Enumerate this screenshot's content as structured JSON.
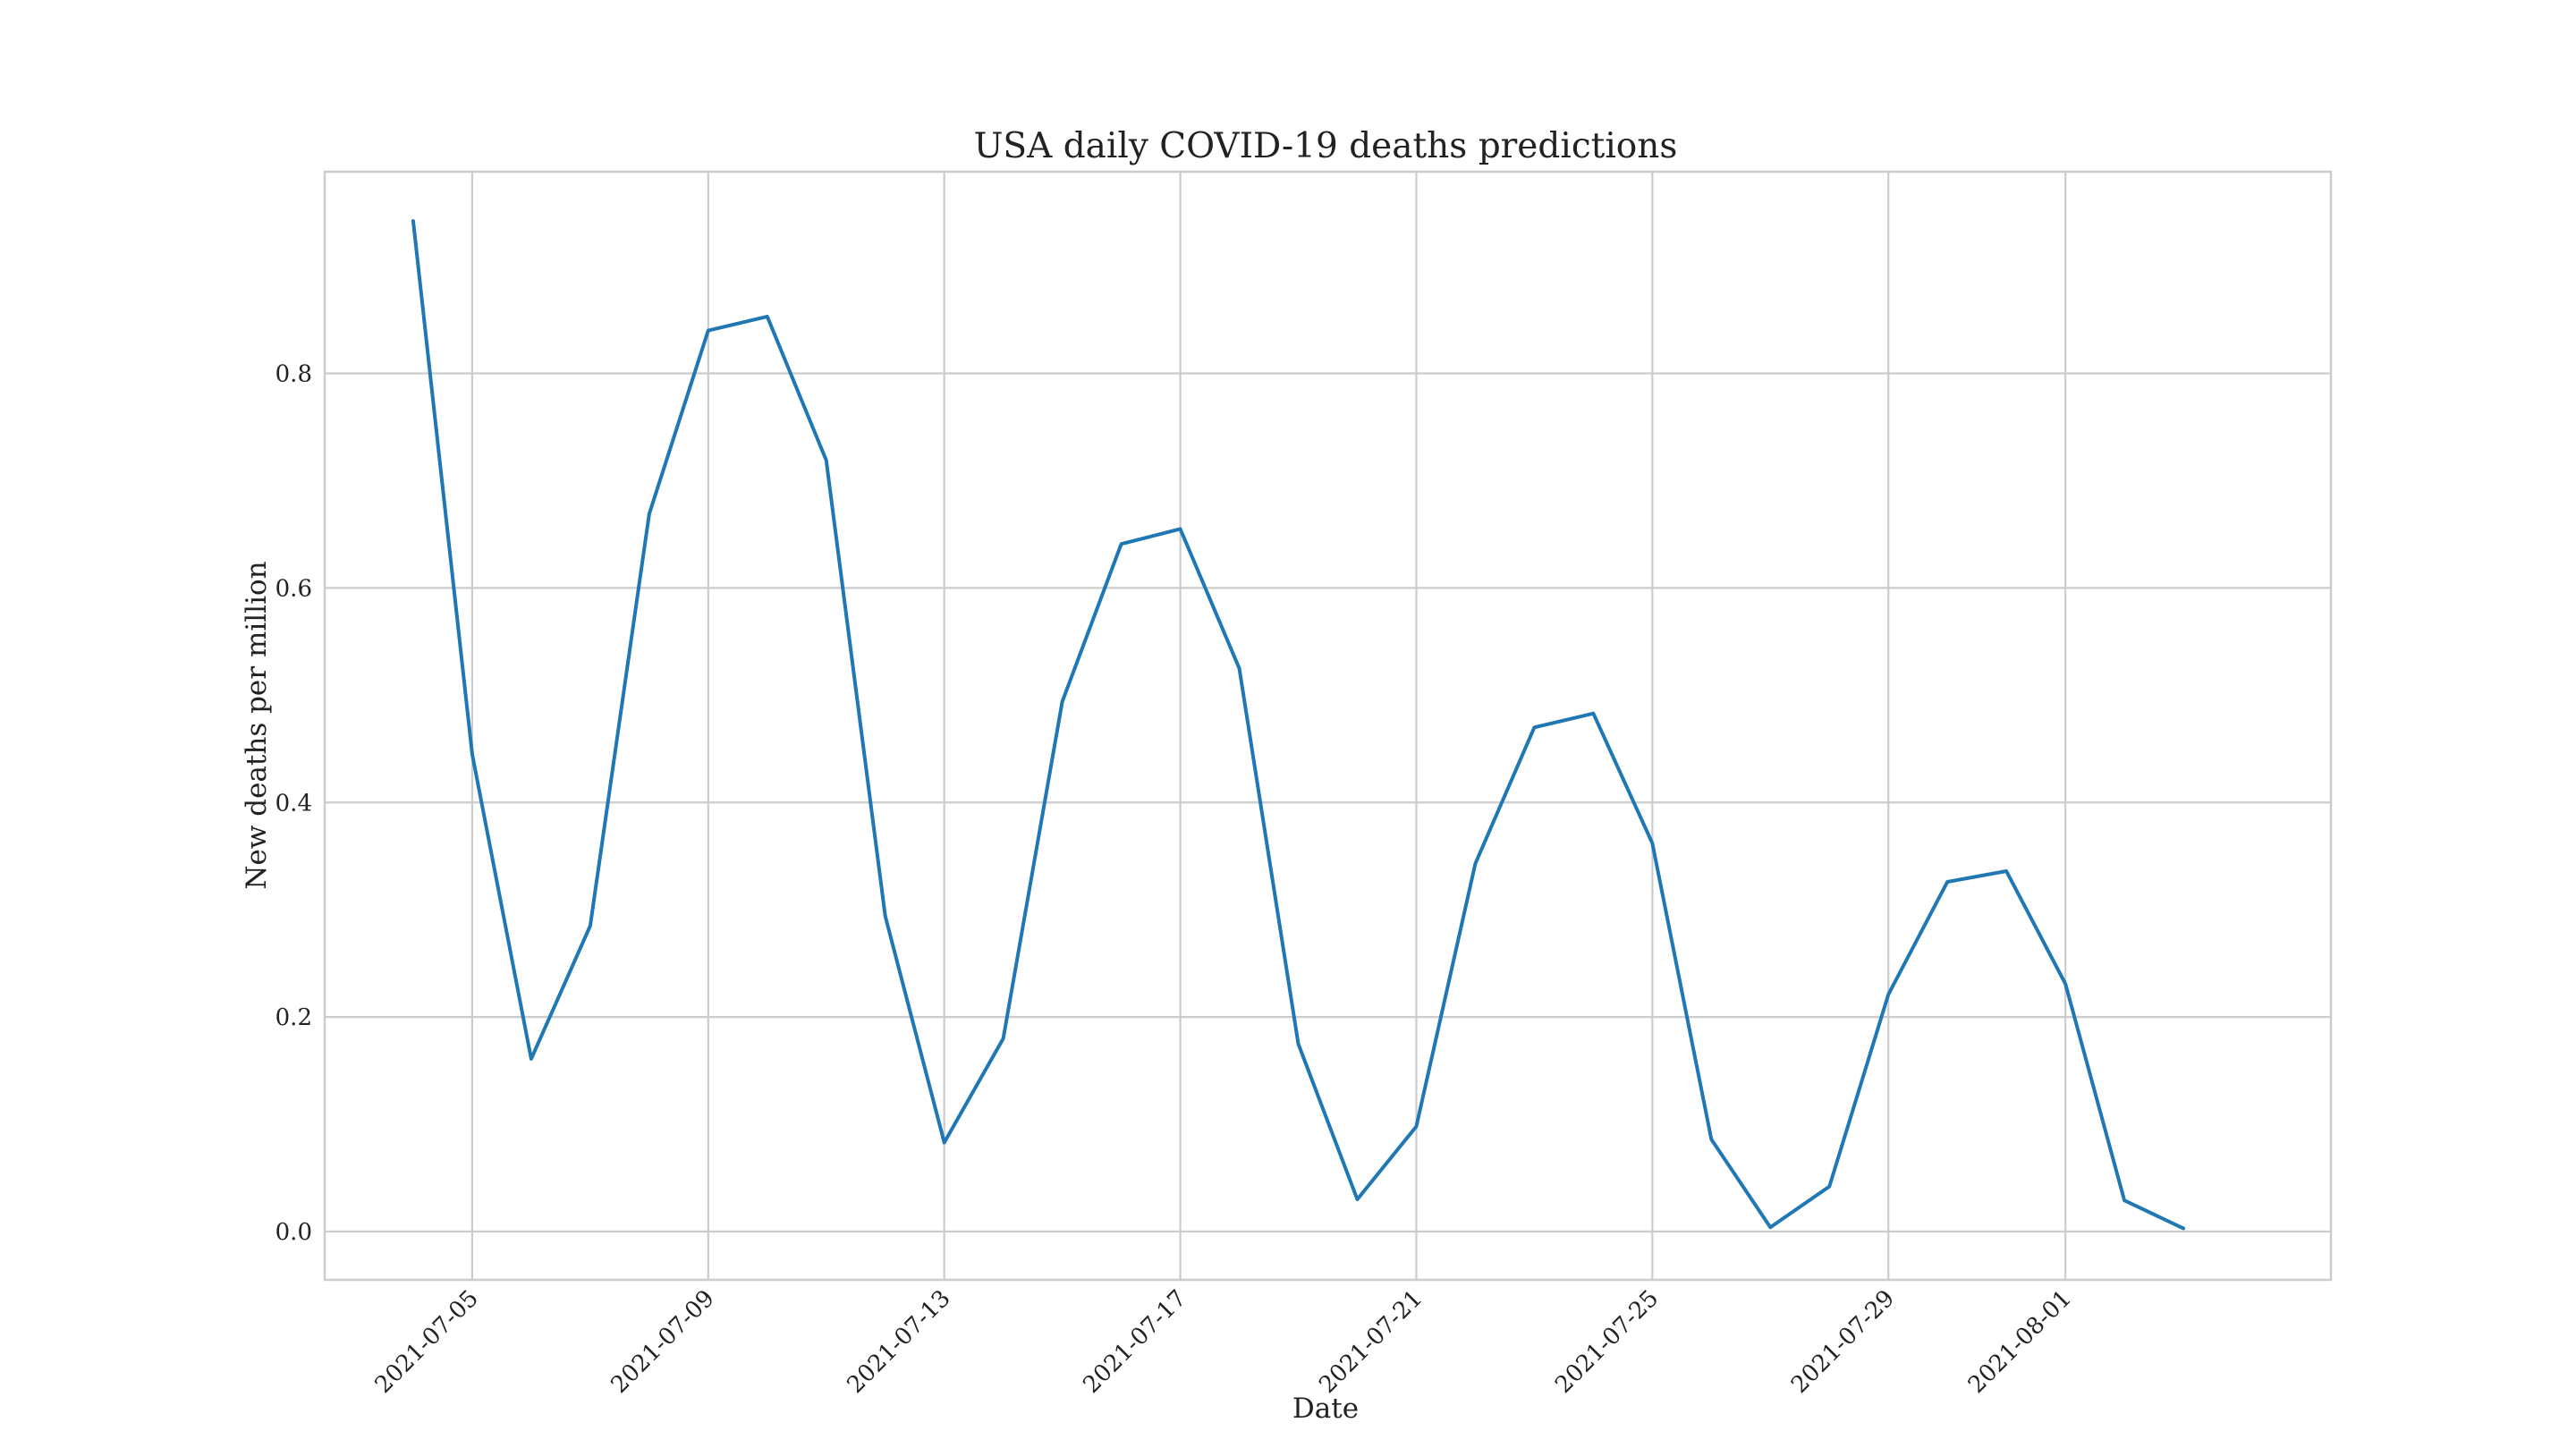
{
  "chart_data": {
    "type": "line",
    "title": "USA daily COVID-19 deaths predictions",
    "xlabel": "Date",
    "ylabel": "New deaths per million",
    "x": [
      "2021-07-04",
      "2021-07-05",
      "2021-07-06",
      "2021-07-07",
      "2021-07-08",
      "2021-07-09",
      "2021-07-10",
      "2021-07-11",
      "2021-07-12",
      "2021-07-13",
      "2021-07-14",
      "2021-07-15",
      "2021-07-16",
      "2021-07-17",
      "2021-07-18",
      "2021-07-19",
      "2021-07-20",
      "2021-07-21",
      "2021-07-22",
      "2021-07-23",
      "2021-07-24",
      "2021-07-25",
      "2021-07-26",
      "2021-07-27",
      "2021-07-28",
      "2021-07-29",
      "2021-07-30",
      "2021-07-31",
      "2021-08-01",
      "2021-08-02",
      "2021-08-03"
    ],
    "series": [
      {
        "color": "#1f77b4",
        "values": [
          0.942,
          0.445,
          0.161,
          0.285,
          0.669,
          0.84,
          0.853,
          0.719,
          0.294,
          0.083,
          0.18,
          0.494,
          0.641,
          0.655,
          0.525,
          0.175,
          0.03,
          0.098,
          0.343,
          0.47,
          0.483,
          0.362,
          0.086,
          0.004,
          0.042,
          0.221,
          0.326,
          0.336,
          0.231,
          0.029,
          0.003
        ]
      }
    ],
    "xlim": [
      "2021-07-02.5",
      "2021-08-05.5"
    ],
    "xticks": [
      "2021-07-05",
      "2021-07-09",
      "2021-07-13",
      "2021-07-17",
      "2021-07-21",
      "2021-07-25",
      "2021-07-29",
      "2021-08-01"
    ],
    "ylim": [
      -0.045,
      0.988
    ],
    "yticks": [
      "0.0",
      "0.2",
      "0.4",
      "0.6",
      "0.8"
    ],
    "grid": true,
    "colors": {
      "line": "#1f77b4",
      "grid": "#cccccc",
      "frame": "#cccccc",
      "text": "#222222"
    }
  }
}
